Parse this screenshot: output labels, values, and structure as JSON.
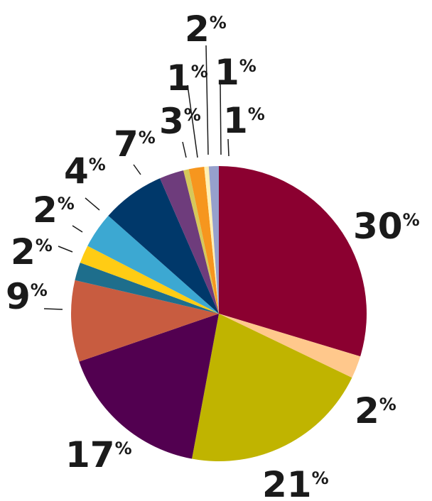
{
  "chart_data": {
    "type": "pie",
    "title": "",
    "slices": [
      {
        "label": "30",
        "value": 30,
        "color": "#8b0030"
      },
      {
        "label": "2",
        "value": 2.5,
        "color": "#ffc88c"
      },
      {
        "label": "21",
        "value": 21,
        "color": "#c0b400"
      },
      {
        "label": "17",
        "value": 17,
        "color": "#520050"
      },
      {
        "label": "9",
        "value": 9,
        "color": "#c85c40"
      },
      {
        "label": "2",
        "value": 2,
        "color": "#1e6e8c"
      },
      {
        "label": "2",
        "value": 2,
        "color": "#ffcc14"
      },
      {
        "label": "4",
        "value": 4,
        "color": "#3ca8d2"
      },
      {
        "label": "7",
        "value": 7,
        "color": "#00386a"
      },
      {
        "label": "3",
        "value": 2.7,
        "color": "#6e3c7c"
      },
      {
        "label": "1",
        "value": 0.6,
        "color": "#d6c85a"
      },
      {
        "label": "2",
        "value": 1.7,
        "color": "#f6961e"
      },
      {
        "label": "1",
        "value": 0.5,
        "color": "#fff0b4"
      },
      {
        "label": "1",
        "value": 1.1,
        "color": "#96a0cc"
      }
    ],
    "percent_sign": "%"
  }
}
